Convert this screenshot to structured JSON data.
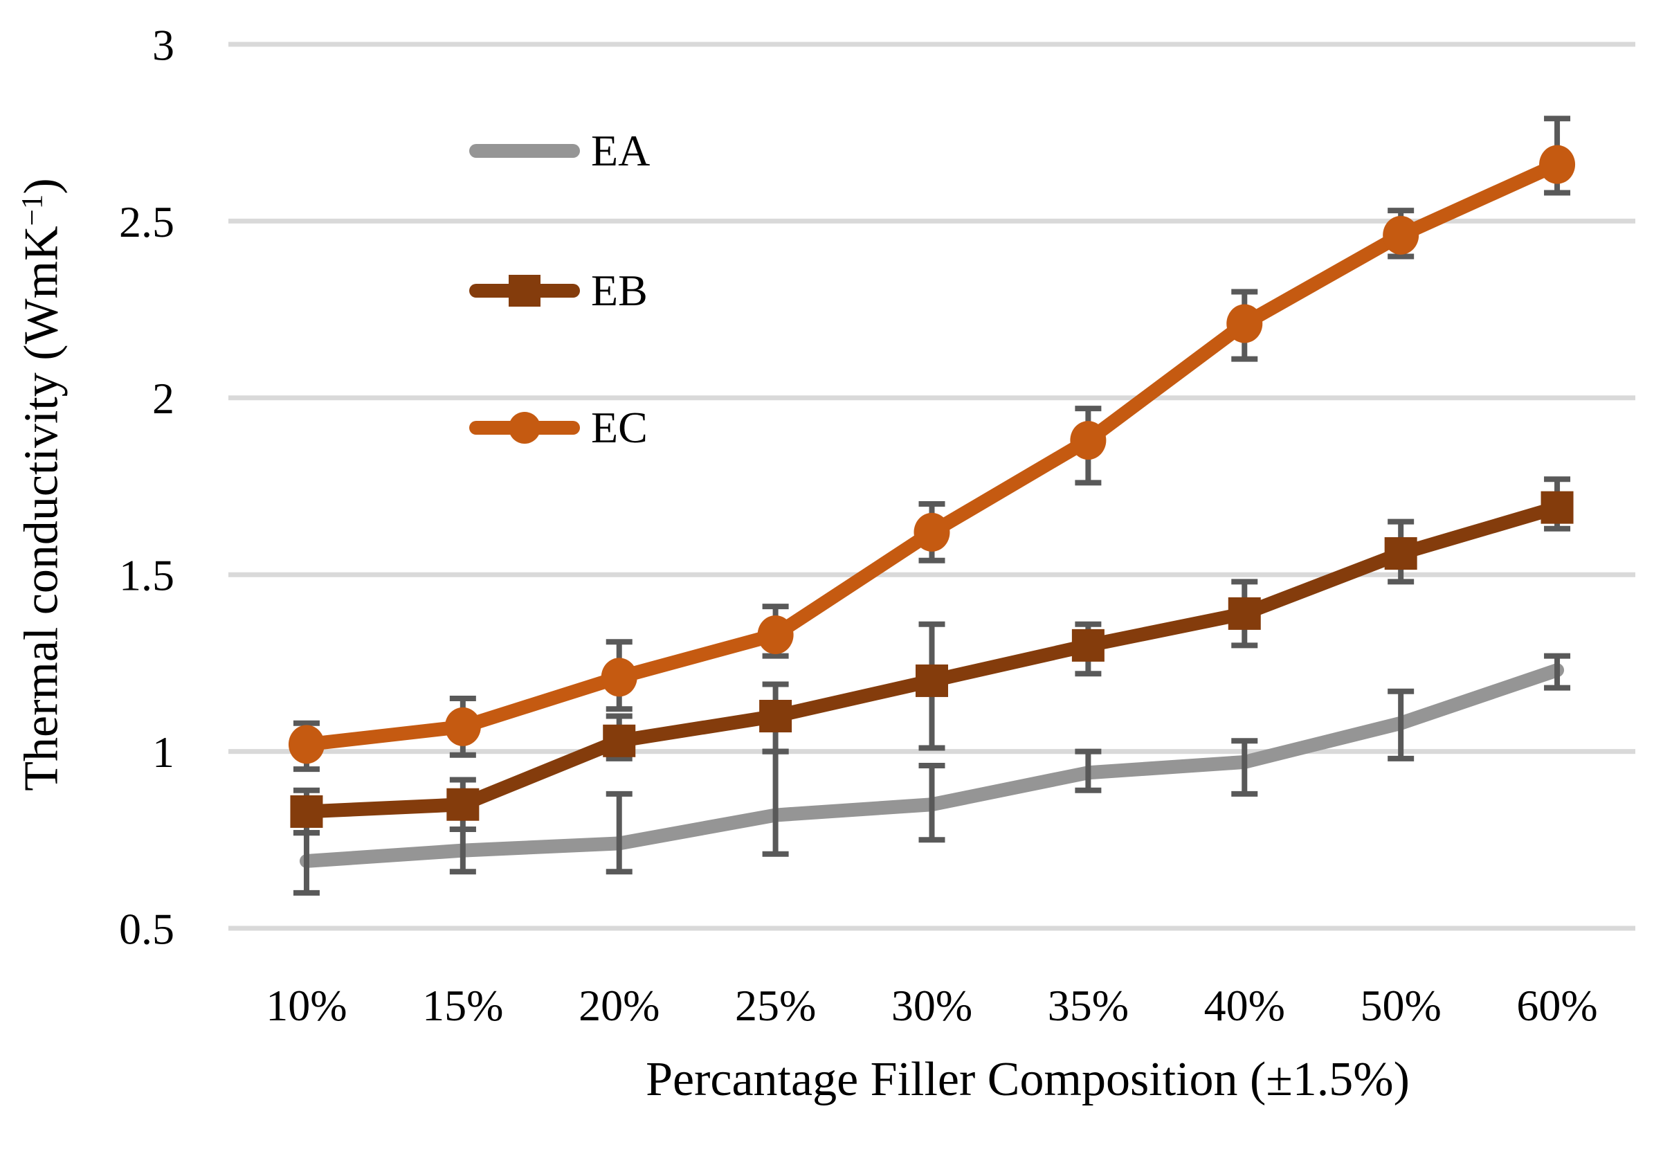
{
  "chart_data": {
    "type": "line",
    "title": "",
    "xlabel": "Percantage Filler Composition (±1.5%)",
    "ylabel_prefix": "Thermal conductivity (WmK",
    "ylabel_sup": "−1",
    "ylabel_suffix": ")",
    "categories": [
      "10%",
      "15%",
      "20%",
      "25%",
      "30%",
      "35%",
      "40%",
      "50%",
      "60%"
    ],
    "ylim": [
      0.5,
      3
    ],
    "yticks": [
      3,
      2.5,
      2,
      1.5,
      1,
      0.5
    ],
    "ytick_labels": [
      "3",
      "2.5",
      "2",
      "1.5",
      "1",
      "0.5"
    ],
    "grid": "horizontal-only",
    "legend_position": "inside-upper-left",
    "colors": {
      "background": "#FFFFFF",
      "gridline": "#D9D9D9",
      "error_bar": "#595959",
      "text": "#000000"
    },
    "series": [
      {
        "name": "EA",
        "color": "#959595",
        "marker": "none",
        "values": [
          0.69,
          0.72,
          0.74,
          0.82,
          0.85,
          0.94,
          0.97,
          1.08,
          1.23
        ],
        "err_up": [
          0.08,
          0.06,
          0.14,
          0.18,
          0.11,
          0.06,
          0.06,
          0.09,
          0.04
        ],
        "err_down": [
          0.09,
          0.06,
          0.08,
          0.11,
          0.1,
          0.05,
          0.09,
          0.1,
          0.05
        ]
      },
      {
        "name": "EB",
        "color": "#843C0C",
        "marker": "square",
        "values": [
          0.83,
          0.85,
          1.03,
          1.1,
          1.2,
          1.3,
          1.39,
          1.56,
          1.69
        ],
        "err_up": [
          0.06,
          0.07,
          0.07,
          0.09,
          0.16,
          0.06,
          0.09,
          0.09,
          0.08
        ],
        "err_down": [
          0.06,
          0.07,
          0.05,
          0.1,
          0.19,
          0.08,
          0.09,
          0.08,
          0.06
        ]
      },
      {
        "name": "EC",
        "color": "#C55A11",
        "marker": "circle",
        "values": [
          1.02,
          1.07,
          1.21,
          1.33,
          1.62,
          1.88,
          2.21,
          2.46,
          2.66
        ],
        "err_up": [
          0.06,
          0.08,
          0.1,
          0.08,
          0.08,
          0.09,
          0.09,
          0.07,
          0.13
        ],
        "err_down": [
          0.07,
          0.08,
          0.09,
          0.06,
          0.08,
          0.12,
          0.1,
          0.06,
          0.08
        ]
      }
    ]
  }
}
